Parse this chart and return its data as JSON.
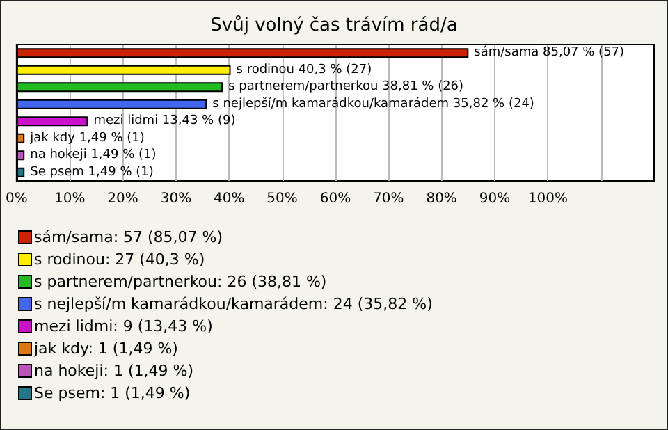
{
  "chart_data": {
    "type": "bar",
    "orientation": "horizontal",
    "title": "Svůj volný čas trávím rád/a",
    "categories": [
      null,
      null,
      null,
      null,
      null,
      null,
      null,
      null
    ],
    "series": [
      {
        "name": "sám/sama: 57 (85,07 %)",
        "color": "#cc2200",
        "values": [
          85.07,
          null,
          null,
          null,
          null,
          null,
          null,
          null
        ],
        "value_labels": [
          "sám/sama 85,07 % (57)",
          null,
          null,
          null,
          null,
          null,
          null,
          null
        ]
      },
      {
        "name": "s rodinou: 27 (40,3 %)",
        "color": "#ffee00",
        "values": [
          null,
          40.3,
          null,
          null,
          null,
          null,
          null,
          null
        ],
        "value_labels": [
          null,
          "s rodinou 40,3 % (27)",
          null,
          null,
          null,
          null,
          null,
          null
        ]
      },
      {
        "name": "s partnerem/partnerkou: 26 (38,81 %)",
        "color": "#22bb22",
        "values": [
          null,
          null,
          38.81,
          null,
          null,
          null,
          null,
          null
        ],
        "value_labels": [
          null,
          null,
          "s partnerem/partnerkou 38,81 % (26)",
          null,
          null,
          null,
          null,
          null
        ]
      },
      {
        "name": "s nejlepší/m kamarádkou/kamarádem: 24 (35,82 %)",
        "color": "#4466ee",
        "values": [
          null,
          null,
          null,
          35.82,
          null,
          null,
          null,
          null
        ],
        "value_labels": [
          null,
          null,
          null,
          "s nejlepší/m kamarádkou/kamarádem 35,82 % (24)",
          null,
          null,
          null,
          null
        ]
      },
      {
        "name": "mezi lidmi: 9 (13,43 %)",
        "color": "#cc11cc",
        "values": [
          null,
          null,
          null,
          null,
          13.43,
          null,
          null,
          null
        ],
        "value_labels": [
          null,
          null,
          null,
          null,
          "mezi lidmi 13,43 % (9)",
          null,
          null,
          null
        ]
      },
      {
        "name": "jak kdy: 1 (1,49 %)",
        "color": "#dd7711",
        "values": [
          null,
          null,
          null,
          null,
          null,
          1.49,
          null,
          null
        ],
        "value_labels": [
          null,
          null,
          null,
          null,
          null,
          "jak kdy 1,49 % (1)",
          null,
          null
        ]
      },
      {
        "name": "na hokeji: 1 (1,49 %)",
        "color": "#bb55bb",
        "values": [
          null,
          null,
          null,
          null,
          null,
          null,
          1.49,
          null
        ],
        "value_labels": [
          null,
          null,
          null,
          null,
          null,
          null,
          "na hokeji 1,49 % (1)",
          null
        ]
      },
      {
        "name": "Se psem: 1 (1,49 %)",
        "color": "#227788",
        "values": [
          null,
          null,
          null,
          null,
          null,
          null,
          null,
          1.49
        ],
        "value_labels": [
          null,
          null,
          null,
          null,
          null,
          null,
          null,
          "Se psem 1,49 % (1)"
        ]
      }
    ],
    "xlim": [
      0,
      120
    ],
    "xticks": [
      {
        "value": 0,
        "label": "0%"
      },
      {
        "value": 10,
        "label": "10%"
      },
      {
        "value": 20,
        "label": "20%"
      },
      {
        "value": 30,
        "label": "30%"
      },
      {
        "value": 40,
        "label": "40%"
      },
      {
        "value": 50,
        "label": "50%"
      },
      {
        "value": 60,
        "label": "60%"
      },
      {
        "value": 70,
        "label": "70%"
      },
      {
        "value": 80,
        "label": "80%"
      },
      {
        "value": 90,
        "label": "90%"
      },
      {
        "value": 100,
        "label": "100%"
      },
      {
        "value": 110,
        "label": null
      }
    ],
    "grid": "x",
    "legend": "bottom"
  }
}
